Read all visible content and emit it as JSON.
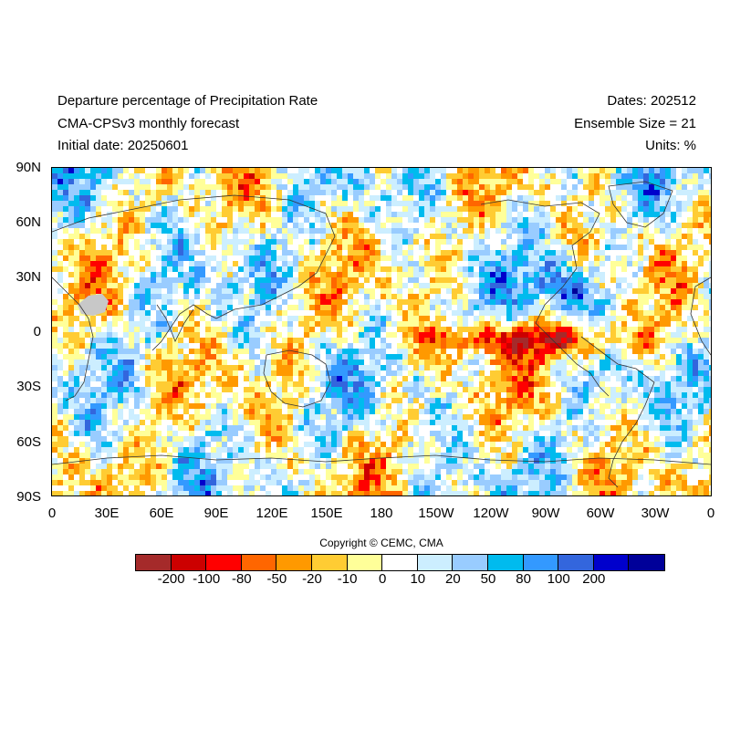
{
  "header": {
    "left_lines": [
      "Departure percentage of Precipitation Rate",
      "CMA-CPSv3 monthly forecast",
      "Initial date: 20250601"
    ],
    "right_lines": [
      "Dates: 202512",
      "Ensemble Size = 21",
      "Units: %"
    ]
  },
  "map": {
    "lat_labels": [
      "90N",
      "60N",
      "30N",
      "0",
      "30S",
      "60S",
      "90S"
    ],
    "lon_labels": [
      "0",
      "30E",
      "60E",
      "90E",
      "120E",
      "150E",
      "180",
      "150W",
      "120W",
      "90W",
      "60W",
      "30W",
      "0"
    ],
    "missing_color": "#c8c8c8",
    "coastline_color": "#333333"
  },
  "copyright": "Copyright © CEMC, CMA",
  "colorbar": {
    "colors": [
      "#a52a2a",
      "#cc0000",
      "#ff0000",
      "#ff6600",
      "#ff9900",
      "#ffcc33",
      "#ffff99",
      "#ffffff",
      "#cceeff",
      "#99ccff",
      "#00bbee",
      "#3399ff",
      "#3366dd",
      "#0000cc",
      "#000099"
    ],
    "tick_labels": [
      "-200",
      "-100",
      "-80",
      "-50",
      "-20",
      "-10",
      "0",
      "10",
      "20",
      "50",
      "80",
      "100",
      "200"
    ]
  }
}
